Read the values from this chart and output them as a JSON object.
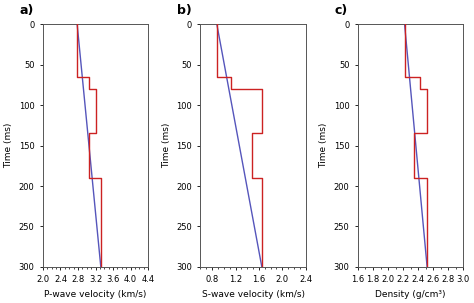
{
  "panels": [
    {
      "label": "a)",
      "xlabel": "P-wave velocity (km/s)",
      "xlim": [
        2.0,
        4.4
      ],
      "xticks": [
        2.0,
        2.4,
        2.8,
        3.2,
        3.6,
        4.0,
        4.4
      ],
      "blue_x": [
        2.78,
        3.32
      ],
      "blue_y": [
        0,
        300
      ],
      "red_x": [
        2.78,
        2.78,
        3.05,
        3.05,
        3.2,
        3.2,
        3.05,
        3.05,
        3.32,
        3.32
      ],
      "red_y": [
        0,
        65,
        65,
        80,
        80,
        135,
        135,
        190,
        190,
        300
      ]
    },
    {
      "label": "b)",
      "xlabel": "S-wave velocity (km/s)",
      "xlim": [
        0.6,
        2.4
      ],
      "xticks": [
        0.8,
        1.2,
        1.6,
        2.0,
        2.4
      ],
      "blue_x": [
        0.88,
        1.65
      ],
      "blue_y": [
        0,
        300
      ],
      "red_x": [
        0.88,
        0.88,
        1.12,
        1.12,
        1.65,
        1.65,
        1.48,
        1.48,
        1.65,
        1.65
      ],
      "red_y": [
        0,
        65,
        65,
        80,
        80,
        135,
        135,
        190,
        190,
        300
      ]
    },
    {
      "label": "c)",
      "xlabel": "Density (g/cm³)",
      "xlim": [
        1.6,
        3.0
      ],
      "xticks": [
        1.6,
        1.8,
        2.0,
        2.2,
        2.4,
        2.6,
        2.8,
        3.0
      ],
      "blue_x": [
        2.22,
        2.52
      ],
      "blue_y": [
        0,
        300
      ],
      "red_x": [
        2.22,
        2.22,
        2.42,
        2.42,
        2.52,
        2.52,
        2.35,
        2.35,
        2.52,
        2.52
      ],
      "red_y": [
        0,
        65,
        65,
        80,
        80,
        135,
        135,
        190,
        190,
        300
      ]
    }
  ],
  "ylim": [
    300,
    0
  ],
  "yticks": [
    0,
    50,
    100,
    150,
    200,
    250,
    300
  ],
  "ylabel": "Time (ms)",
  "blue_color": "#5555bb",
  "red_color": "#cc2222",
  "linewidth": 1.0,
  "bg_color": "#ffffff",
  "figsize": [
    4.74,
    3.03
  ],
  "dpi": 100
}
